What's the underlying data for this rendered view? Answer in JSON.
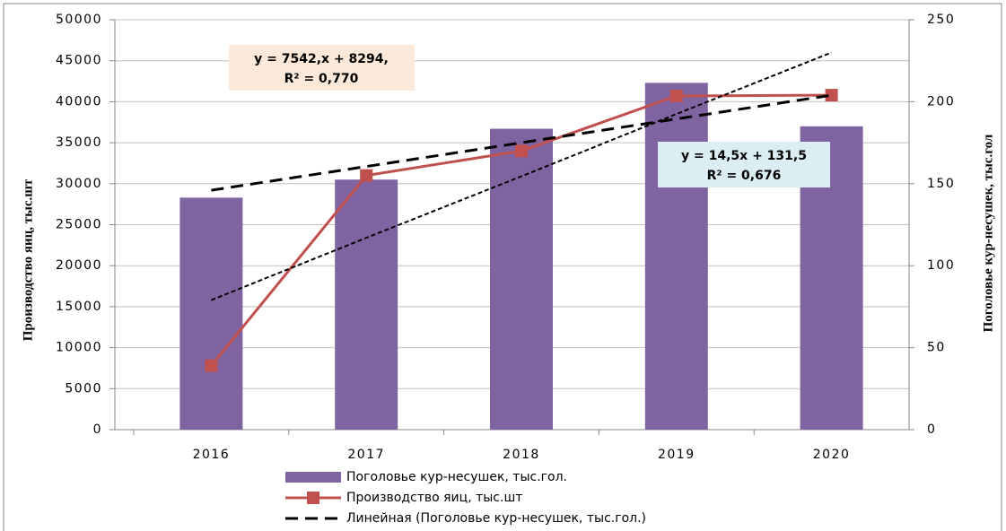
{
  "chart_data": {
    "type": "bar",
    "y_label": "Производство яиц, тыс.шт",
    "y2_label": "Поголовье кур-несушек, тыс.гол",
    "categories": [
      "2016",
      "2017",
      "2018",
      "2019",
      "2020"
    ],
    "ylim": [
      0,
      50000
    ],
    "yticks": [
      0,
      5000,
      10000,
      15000,
      20000,
      25000,
      30000,
      35000,
      40000,
      45000,
      50000
    ],
    "y2lim": [
      0,
      250
    ],
    "y2ticks": [
      0,
      50,
      100,
      150,
      200,
      250
    ],
    "grid": true,
    "legend": "bottom",
    "series": [
      {
        "name": "Поголовье кур-несушек,  тыс.гол.",
        "type": "bar",
        "axis": "y2",
        "color": "#8064a2",
        "values": [
          141.5,
          152.5,
          183.5,
          211.5,
          185
        ]
      },
      {
        "name": "Производство яиц, тыс.шт",
        "type": "line",
        "axis": "y",
        "color": "#c0504d",
        "marker": "square",
        "values": [
          7800,
          31000,
          34000,
          40700,
          40800
        ]
      },
      {
        "name": "Линейная (Поголовье кур-несушек,  тыс.гол.)",
        "type": "line",
        "axis": "y2",
        "color": "#000000",
        "line_style": "dashed",
        "values": [
          146,
          160.5,
          175,
          189.5,
          204
        ]
      },
      {
        "type": "line",
        "axis": "y",
        "color": "#000000",
        "line_style": "dotted",
        "values": [
          15800,
          23400,
          30900,
          38500,
          46000
        ]
      }
    ],
    "annotations": [
      "y = 7542,x + 8294,",
      "R² = 0,770",
      "y = 14,5x + 131,5",
      "R² = 0,676"
    ]
  }
}
